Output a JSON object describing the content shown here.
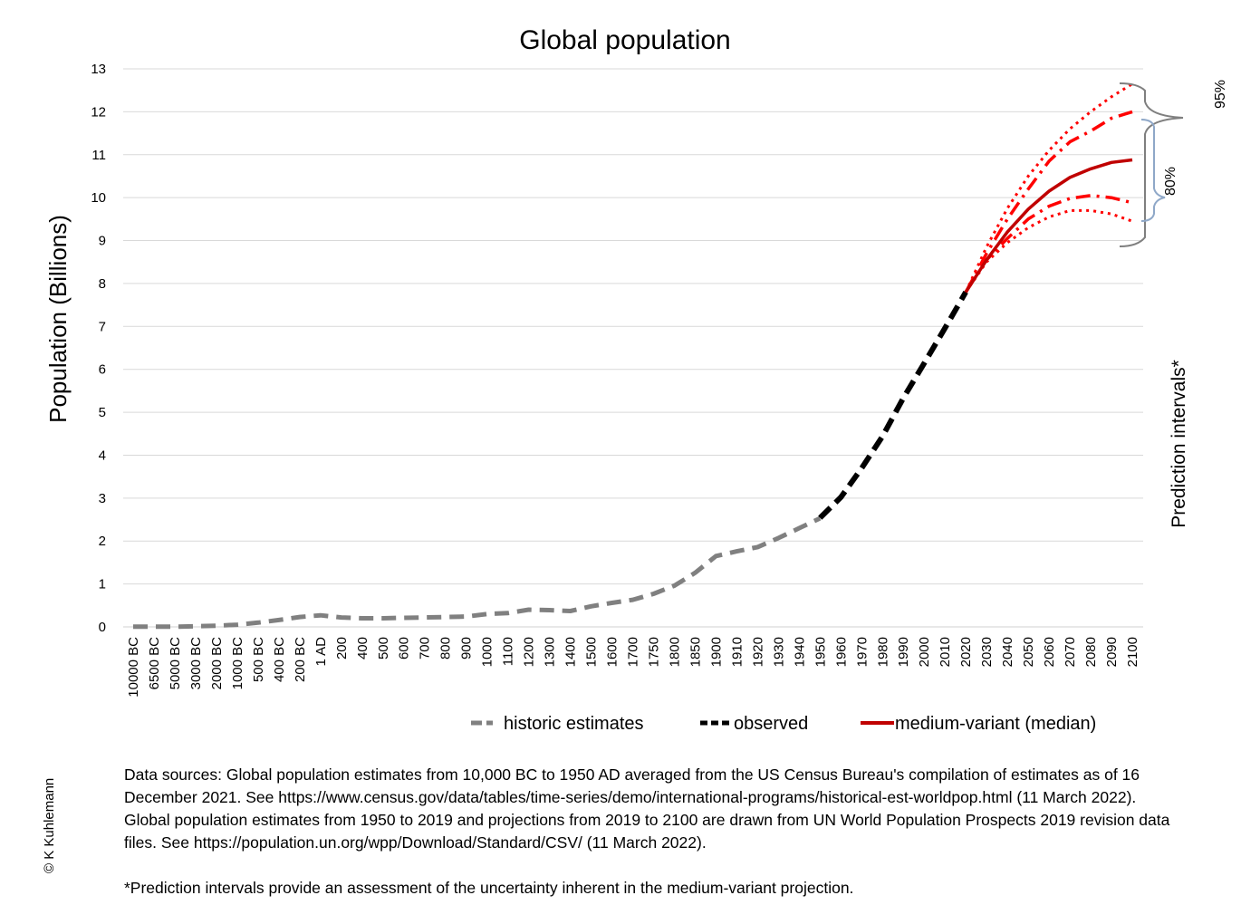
{
  "chart_data": {
    "type": "line",
    "title": "Global population",
    "xlabel": "",
    "ylabel": "Population (Billions)",
    "ylim": [
      0,
      13
    ],
    "yticks": [
      0,
      1,
      2,
      3,
      4,
      5,
      6,
      7,
      8,
      9,
      10,
      11,
      12,
      13
    ],
    "grid": true,
    "legend_position": "bottom",
    "categories": [
      "10000 BC",
      "6500 BC",
      "5000 BC",
      "3000 BC",
      "2000 BC",
      "1000 BC",
      "500 BC",
      "400 BC",
      "200 BC",
      "1 AD",
      "200",
      "400",
      "500",
      "600",
      "700",
      "800",
      "900",
      "1000",
      "1100",
      "1200",
      "1300",
      "1400",
      "1500",
      "1600",
      "1700",
      "1750",
      "1800",
      "1850",
      "1900",
      "1910",
      "1920",
      "1930",
      "1940",
      "1950",
      "1960",
      "1970",
      "1980",
      "1990",
      "2000",
      "2010",
      "2020",
      "2030",
      "2040",
      "2050",
      "2060",
      "2070",
      "2080",
      "2090",
      "2100"
    ],
    "series": [
      {
        "name": "historic estimates",
        "color": "#808080",
        "style": "dashed",
        "values": [
          0.004,
          0.005,
          0.005,
          0.014,
          0.027,
          0.05,
          0.1,
          0.16,
          0.23,
          0.27,
          0.22,
          0.2,
          0.2,
          0.21,
          0.22,
          0.23,
          0.24,
          0.3,
          0.32,
          0.4,
          0.39,
          0.37,
          0.48,
          0.56,
          0.63,
          0.77,
          0.96,
          1.26,
          1.65,
          1.76,
          1.86,
          2.07,
          2.3,
          2.53,
          null,
          null,
          null,
          null,
          null,
          null,
          null,
          null,
          null,
          null,
          null,
          null,
          null,
          null,
          null
        ]
      },
      {
        "name": "observed",
        "color": "#000000",
        "style": "dashed",
        "values": [
          null,
          null,
          null,
          null,
          null,
          null,
          null,
          null,
          null,
          null,
          null,
          null,
          null,
          null,
          null,
          null,
          null,
          null,
          null,
          null,
          null,
          null,
          null,
          null,
          null,
          null,
          null,
          null,
          null,
          null,
          null,
          null,
          null,
          2.54,
          3.02,
          3.7,
          4.44,
          5.33,
          6.14,
          6.96,
          7.8,
          null,
          null,
          null,
          null,
          null,
          null,
          null,
          null
        ]
      },
      {
        "name": "medium-variant (median)",
        "color": "#c00000",
        "style": "solid",
        "values": [
          null,
          null,
          null,
          null,
          null,
          null,
          null,
          null,
          null,
          null,
          null,
          null,
          null,
          null,
          null,
          null,
          null,
          null,
          null,
          null,
          null,
          null,
          null,
          null,
          null,
          null,
          null,
          null,
          null,
          null,
          null,
          null,
          null,
          null,
          null,
          null,
          null,
          null,
          null,
          null,
          7.8,
          8.55,
          9.2,
          9.73,
          10.15,
          10.47,
          10.67,
          10.82,
          10.88
        ]
      },
      {
        "name": "",
        "color": "#ff0000",
        "style": "dashdot",
        "role": "80% upper",
        "values": [
          null,
          null,
          null,
          null,
          null,
          null,
          null,
          null,
          null,
          null,
          null,
          null,
          null,
          null,
          null,
          null,
          null,
          null,
          null,
          null,
          null,
          null,
          null,
          null,
          null,
          null,
          null,
          null,
          null,
          null,
          null,
          null,
          null,
          null,
          null,
          null,
          null,
          null,
          null,
          null,
          7.8,
          8.7,
          9.5,
          10.2,
          10.85,
          11.3,
          11.55,
          11.85,
          12.0
        ]
      },
      {
        "name": "",
        "color": "#ff0000",
        "style": "dashdot",
        "role": "80% lower",
        "values": [
          null,
          null,
          null,
          null,
          null,
          null,
          null,
          null,
          null,
          null,
          null,
          null,
          null,
          null,
          null,
          null,
          null,
          null,
          null,
          null,
          null,
          null,
          null,
          null,
          null,
          null,
          null,
          null,
          null,
          null,
          null,
          null,
          null,
          null,
          null,
          null,
          null,
          null,
          null,
          null,
          7.8,
          8.55,
          9.05,
          9.5,
          9.8,
          9.98,
          10.05,
          10.0,
          9.88
        ]
      },
      {
        "name": "",
        "color": "#ff0000",
        "style": "dotted",
        "role": "95% upper",
        "values": [
          null,
          null,
          null,
          null,
          null,
          null,
          null,
          null,
          null,
          null,
          null,
          null,
          null,
          null,
          null,
          null,
          null,
          null,
          null,
          null,
          null,
          null,
          null,
          null,
          null,
          null,
          null,
          null,
          null,
          null,
          null,
          null,
          null,
          null,
          null,
          null,
          null,
          null,
          null,
          null,
          7.8,
          8.85,
          9.75,
          10.5,
          11.1,
          11.6,
          12.0,
          12.35,
          12.65
        ]
      },
      {
        "name": "",
        "color": "#ff0000",
        "style": "dotted",
        "role": "95% lower",
        "values": [
          null,
          null,
          null,
          null,
          null,
          null,
          null,
          null,
          null,
          null,
          null,
          null,
          null,
          null,
          null,
          null,
          null,
          null,
          null,
          null,
          null,
          null,
          null,
          null,
          null,
          null,
          null,
          null,
          null,
          null,
          null,
          null,
          null,
          null,
          null,
          null,
          null,
          null,
          null,
          null,
          7.8,
          8.5,
          8.95,
          9.3,
          9.55,
          9.7,
          9.7,
          9.62,
          9.45
        ]
      }
    ],
    "side_label": "Prediction intervals*",
    "interval_labels": [
      "95%",
      "80%"
    ]
  },
  "legend": {
    "items": [
      "historic estimates",
      "observed",
      "medium-variant (median)"
    ]
  },
  "notes": {
    "sources": "Data sources: Global population estimates from 10,000 BC to 1950 AD averaged from the US Census Bureau's compilation of estimates as of 16 December 2021. See https://www.census.gov/data/tables/time-series/demo/international-programs/historical-est-worldpop.html (11 March 2022). Global population estimates from 1950 to 2019 and projections from 2019 to 2100 are drawn from UN World Population Prospects 2019 revision data files. See https://population.un.org/wpp/Download/Standard/CSV/ (11 March 2022).",
    "footnote": "*Prediction intervals provide an assessment of the uncertainty inherent in the medium-variant projection."
  },
  "copyright": "© K Kuhlemann"
}
